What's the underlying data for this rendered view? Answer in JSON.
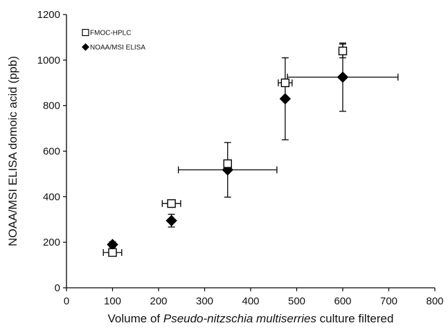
{
  "chart_data": {
    "type": "scatter",
    "xlabel_parts": [
      "Volume of ",
      "Pseudo-nitzschia multiserries",
      " culture filtered"
    ],
    "ylabel": "NOAA/MSI ELISA domoic acid (ppb)",
    "xlim": [
      0,
      800
    ],
    "ylim": [
      0,
      1200
    ],
    "xticks": [
      "0",
      "100",
      "200",
      "300",
      "400",
      "500",
      "600",
      "700",
      "800"
    ],
    "yticks": [
      "0",
      "200",
      "400",
      "600",
      "800",
      "1000",
      "1200"
    ],
    "grid": false,
    "legend_position": "top-left",
    "series": [
      {
        "name": "FMOC-HPLC",
        "marker": "open-square",
        "points": [
          {
            "x": 100,
            "y": 155,
            "xerr": 20,
            "yerr": 0
          },
          {
            "x": 228,
            "y": 370,
            "xerr": 20,
            "yerr": 0
          },
          {
            "x": 350,
            "y": 545,
            "xerr": 0,
            "yerr": 0
          },
          {
            "x": 475,
            "y": 900,
            "xerr": 15,
            "yerr": 0
          },
          {
            "x": 600,
            "y": 1040,
            "xerr": 0,
            "yerr": 30
          }
        ]
      },
      {
        "name": "NOAA/MSI ELISA",
        "marker": "filled-diamond",
        "points": [
          {
            "x": 100,
            "y": 190,
            "xerr": 0,
            "yerr": 12
          },
          {
            "x": 228,
            "y": 295,
            "xerr": 0,
            "yerr": 28
          },
          {
            "x": 350,
            "y": 518,
            "xerr": 107,
            "yerr": 120
          },
          {
            "x": 475,
            "y": 830,
            "xerr": 0,
            "yerr": 180
          },
          {
            "x": 600,
            "y": 925,
            "xerr": 120,
            "yerr": 150
          }
        ]
      }
    ]
  }
}
